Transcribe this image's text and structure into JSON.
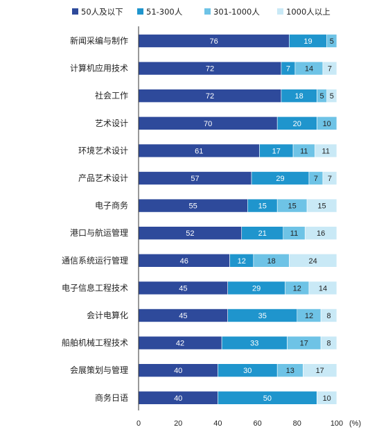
{
  "chart_data": {
    "type": "bar",
    "orientation": "horizontal",
    "stacked": true,
    "categories": [
      "新闻采编与制作",
      "计算机应用技术",
      "社会工作",
      "艺术设计",
      "环境艺术设计",
      "产品艺术设计",
      "电子商务",
      "港口与航运管理",
      "通信系统运行管理",
      "电子信息工程技术",
      "会计电算化",
      "船舶机械工程技术",
      "会展策划与管理",
      "商务日语"
    ],
    "series": [
      {
        "name": "50人及以下",
        "color": "#2E4A9B",
        "label_color": "#ffffff",
        "values": [
          76,
          72,
          72,
          70,
          61,
          57,
          55,
          52,
          46,
          45,
          45,
          42,
          40,
          40
        ]
      },
      {
        "name": "51-300人",
        "color": "#1F95CD",
        "label_color": "#ffffff",
        "values": [
          19,
          7,
          18,
          20,
          17,
          29,
          15,
          21,
          12,
          29,
          35,
          33,
          30,
          50
        ]
      },
      {
        "name": "301-1000人",
        "color": "#6EC3E6",
        "label_color": "#222222",
        "values": [
          5,
          14,
          5,
          10,
          11,
          7,
          15,
          11,
          18,
          12,
          12,
          17,
          13,
          0
        ]
      },
      {
        "name": "1000人以上",
        "color": "#C9E9F6",
        "label_color": "#222222",
        "values": [
          0,
          7,
          5,
          0,
          11,
          7,
          15,
          16,
          24,
          14,
          8,
          8,
          17,
          10
        ]
      }
    ],
    "xlim": [
      0,
      100
    ],
    "xticks": [
      "0",
      "20",
      "40",
      "60",
      "80",
      "100"
    ],
    "x_unit": "(%)",
    "legend_position": "top",
    "grid": false
  }
}
